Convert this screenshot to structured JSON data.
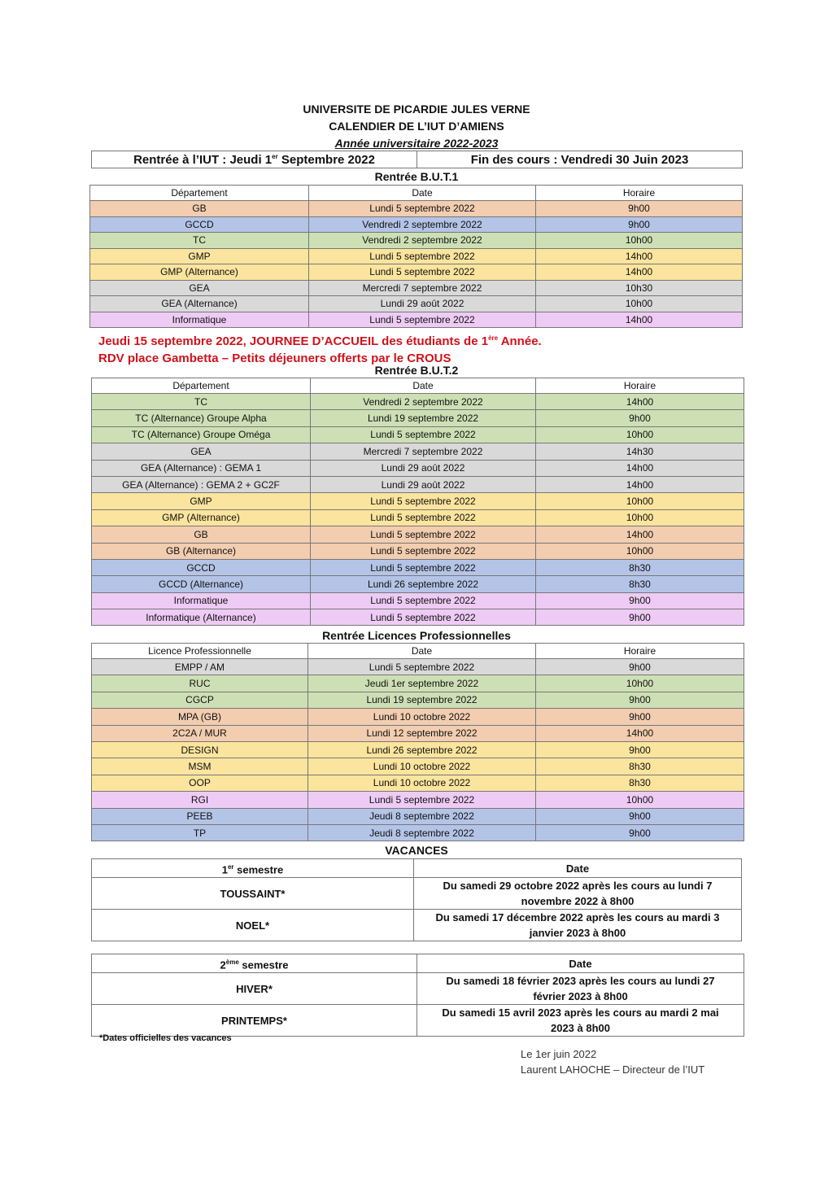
{
  "header": {
    "line1": "UNIVERSITE DE PICARDIE JULES VERNE",
    "line2": "CALENDIER DE L’IUT D’AMIENS",
    "line3": "Année universitaire 2022-2023"
  },
  "summary": {
    "rentree_pre": "Rentrée à l’IUT : Jeudi 1",
    "rentree_sup": "er",
    "rentree_post": " Septembre 2022",
    "fin": "Fin des cours : Vendredi 30 Juin 2023"
  },
  "colors": {
    "orange": "#f2cdb0",
    "blue": "#b4c4e6",
    "green": "#cde0b5",
    "yellow": "#fbe49d",
    "gray": "#d9d9d9",
    "pink": "#eecbf5"
  },
  "but1": {
    "title": "Rentrée B.U.T.1",
    "headers": [
      "Département",
      "Date",
      "Horaire"
    ],
    "rows": [
      [
        "GB",
        "Lundi 5 septembre 2022",
        "9h00",
        "orange"
      ],
      [
        "GCCD",
        "Vendredi 2 septembre 2022",
        "9h00",
        "blue"
      ],
      [
        "TC",
        "Vendredi 2 septembre 2022",
        "10h00",
        "green"
      ],
      [
        "GMP",
        "Lundi 5 septembre 2022",
        "14h00",
        "yellow"
      ],
      [
        "GMP (Alternance)",
        "Lundi 5 septembre 2022",
        "14h00",
        "yellow"
      ],
      [
        "GEA",
        "Mercredi 7 septembre 2022",
        "10h30",
        "gray"
      ],
      [
        "GEA (Alternance)",
        "Lundi 29 août 2022",
        "10h00",
        "gray"
      ],
      [
        "Informatique",
        "Lundi 5 septembre 2022",
        "14h00",
        "pink"
      ]
    ]
  },
  "notice": {
    "line1_pre": "Jeudi 15 septembre 2022, JOURNEE D’ACCUEIL des étudiants de 1",
    "line1_sup": "ère",
    "line1_post": " Année.",
    "line2": "RDV place Gambetta – Petits déjeuners offerts par le CROUS"
  },
  "but2": {
    "title": "Rentrée B.U.T.2",
    "headers": [
      "Département",
      "Date",
      "Horaire"
    ],
    "rows": [
      [
        "TC",
        "Vendredi 2 septembre 2022",
        "14h00",
        "green"
      ],
      [
        "TC (Alternance) Groupe Alpha",
        "Lundi 19 septembre 2022",
        "9h00",
        "green"
      ],
      [
        "TC (Alternance) Groupe Oméga",
        "Lundi 5 septembre 2022",
        "10h00",
        "green"
      ],
      [
        "GEA",
        "Mercredi 7 septembre 2022",
        "14h30",
        "gray"
      ],
      [
        "GEA (Alternance) : GEMA 1",
        "Lundi 29 août 2022",
        "14h00",
        "gray"
      ],
      [
        "GEA (Alternance) : GEMA 2 + GC2F",
        "Lundi 29 août 2022",
        "14h00",
        "gray"
      ],
      [
        "GMP",
        "Lundi 5 septembre 2022",
        "10h00",
        "yellow"
      ],
      [
        "GMP (Alternance)",
        "Lundi 5 septembre 2022",
        "10h00",
        "yellow"
      ],
      [
        "GB",
        "Lundi 5 septembre 2022",
        "14h00",
        "orange"
      ],
      [
        "GB (Alternance)",
        "Lundi 5 septembre 2022",
        "10h00",
        "orange"
      ],
      [
        "GCCD",
        "Lundi 5 septembre 2022",
        "8h30",
        "blue"
      ],
      [
        "GCCD (Alternance)",
        "Lundi 26 septembre 2022",
        "8h30",
        "blue"
      ],
      [
        "Informatique",
        "Lundi 5 septembre 2022",
        "9h00",
        "pink"
      ],
      [
        "Informatique (Alternance)",
        "Lundi 5 septembre 2022",
        "9h00",
        "pink"
      ]
    ]
  },
  "lp": {
    "title": "Rentrée Licences Professionnelles",
    "headers": [
      "Licence Professionnelle",
      "Date",
      "Horaire"
    ],
    "rows": [
      [
        "EMPP / AM",
        "Lundi 5 septembre 2022",
        "9h00",
        "gray"
      ],
      [
        "RUC",
        "Jeudi 1er septembre 2022",
        "10h00",
        "green"
      ],
      [
        "CGCP",
        "Lundi 19 septembre 2022",
        "9h00",
        "green"
      ],
      [
        "MPA (GB)",
        "Lundi 10 octobre 2022",
        "9h00",
        "orange"
      ],
      [
        "2C2A / MUR",
        "Lundi 12 septembre 2022",
        "14h00",
        "orange"
      ],
      [
        "DESIGN",
        "Lundi 26 septembre 2022",
        "9h00",
        "yellow"
      ],
      [
        "MSM",
        "Lundi 10 octobre 2022",
        "8h30",
        "yellow"
      ],
      [
        "OOP",
        "Lundi 10 octobre 2022",
        "8h30",
        "yellow"
      ],
      [
        "RGI",
        "Lundi 5 septembre 2022",
        "10h00",
        "pink"
      ],
      [
        "PEEB",
        "Jeudi 8 septembre 2022",
        "9h00",
        "blue"
      ],
      [
        "TP",
        "Jeudi 8 septembre 2022",
        "9h00",
        "blue"
      ]
    ]
  },
  "vacances": {
    "title": "VACANCES",
    "s1": {
      "head_num": "1",
      "head_sup": "er",
      "head_rest": " semestre",
      "date_head": "Date",
      "rows": [
        [
          "TOUSSAINT*",
          "Du samedi 29 octobre 2022 après les cours au lundi 7 novembre 2022 à 8h00"
        ],
        [
          "NOEL*",
          "Du samedi 17 décembre 2022 après les cours au mardi 3 janvier 2023 à 8h00"
        ]
      ]
    },
    "s2": {
      "head_num": "2",
      "head_sup": "ème",
      "head_rest": " semestre",
      "date_head": "Date",
      "rows": [
        [
          "HIVER*",
          "Du samedi 18 février 2023 après les cours au lundi 27 février 2023 à 8h00"
        ],
        [
          "PRINTEMPS*",
          "Du samedi 15 avril 2023 après les cours au mardi 2 mai 2023 à 8h00"
        ]
      ]
    },
    "footnote": "*Dates officielles des vacances"
  },
  "signature": {
    "date": "Le 1er juin 2022",
    "author": "Laurent LAHOCHE – Directeur de l’IUT"
  }
}
